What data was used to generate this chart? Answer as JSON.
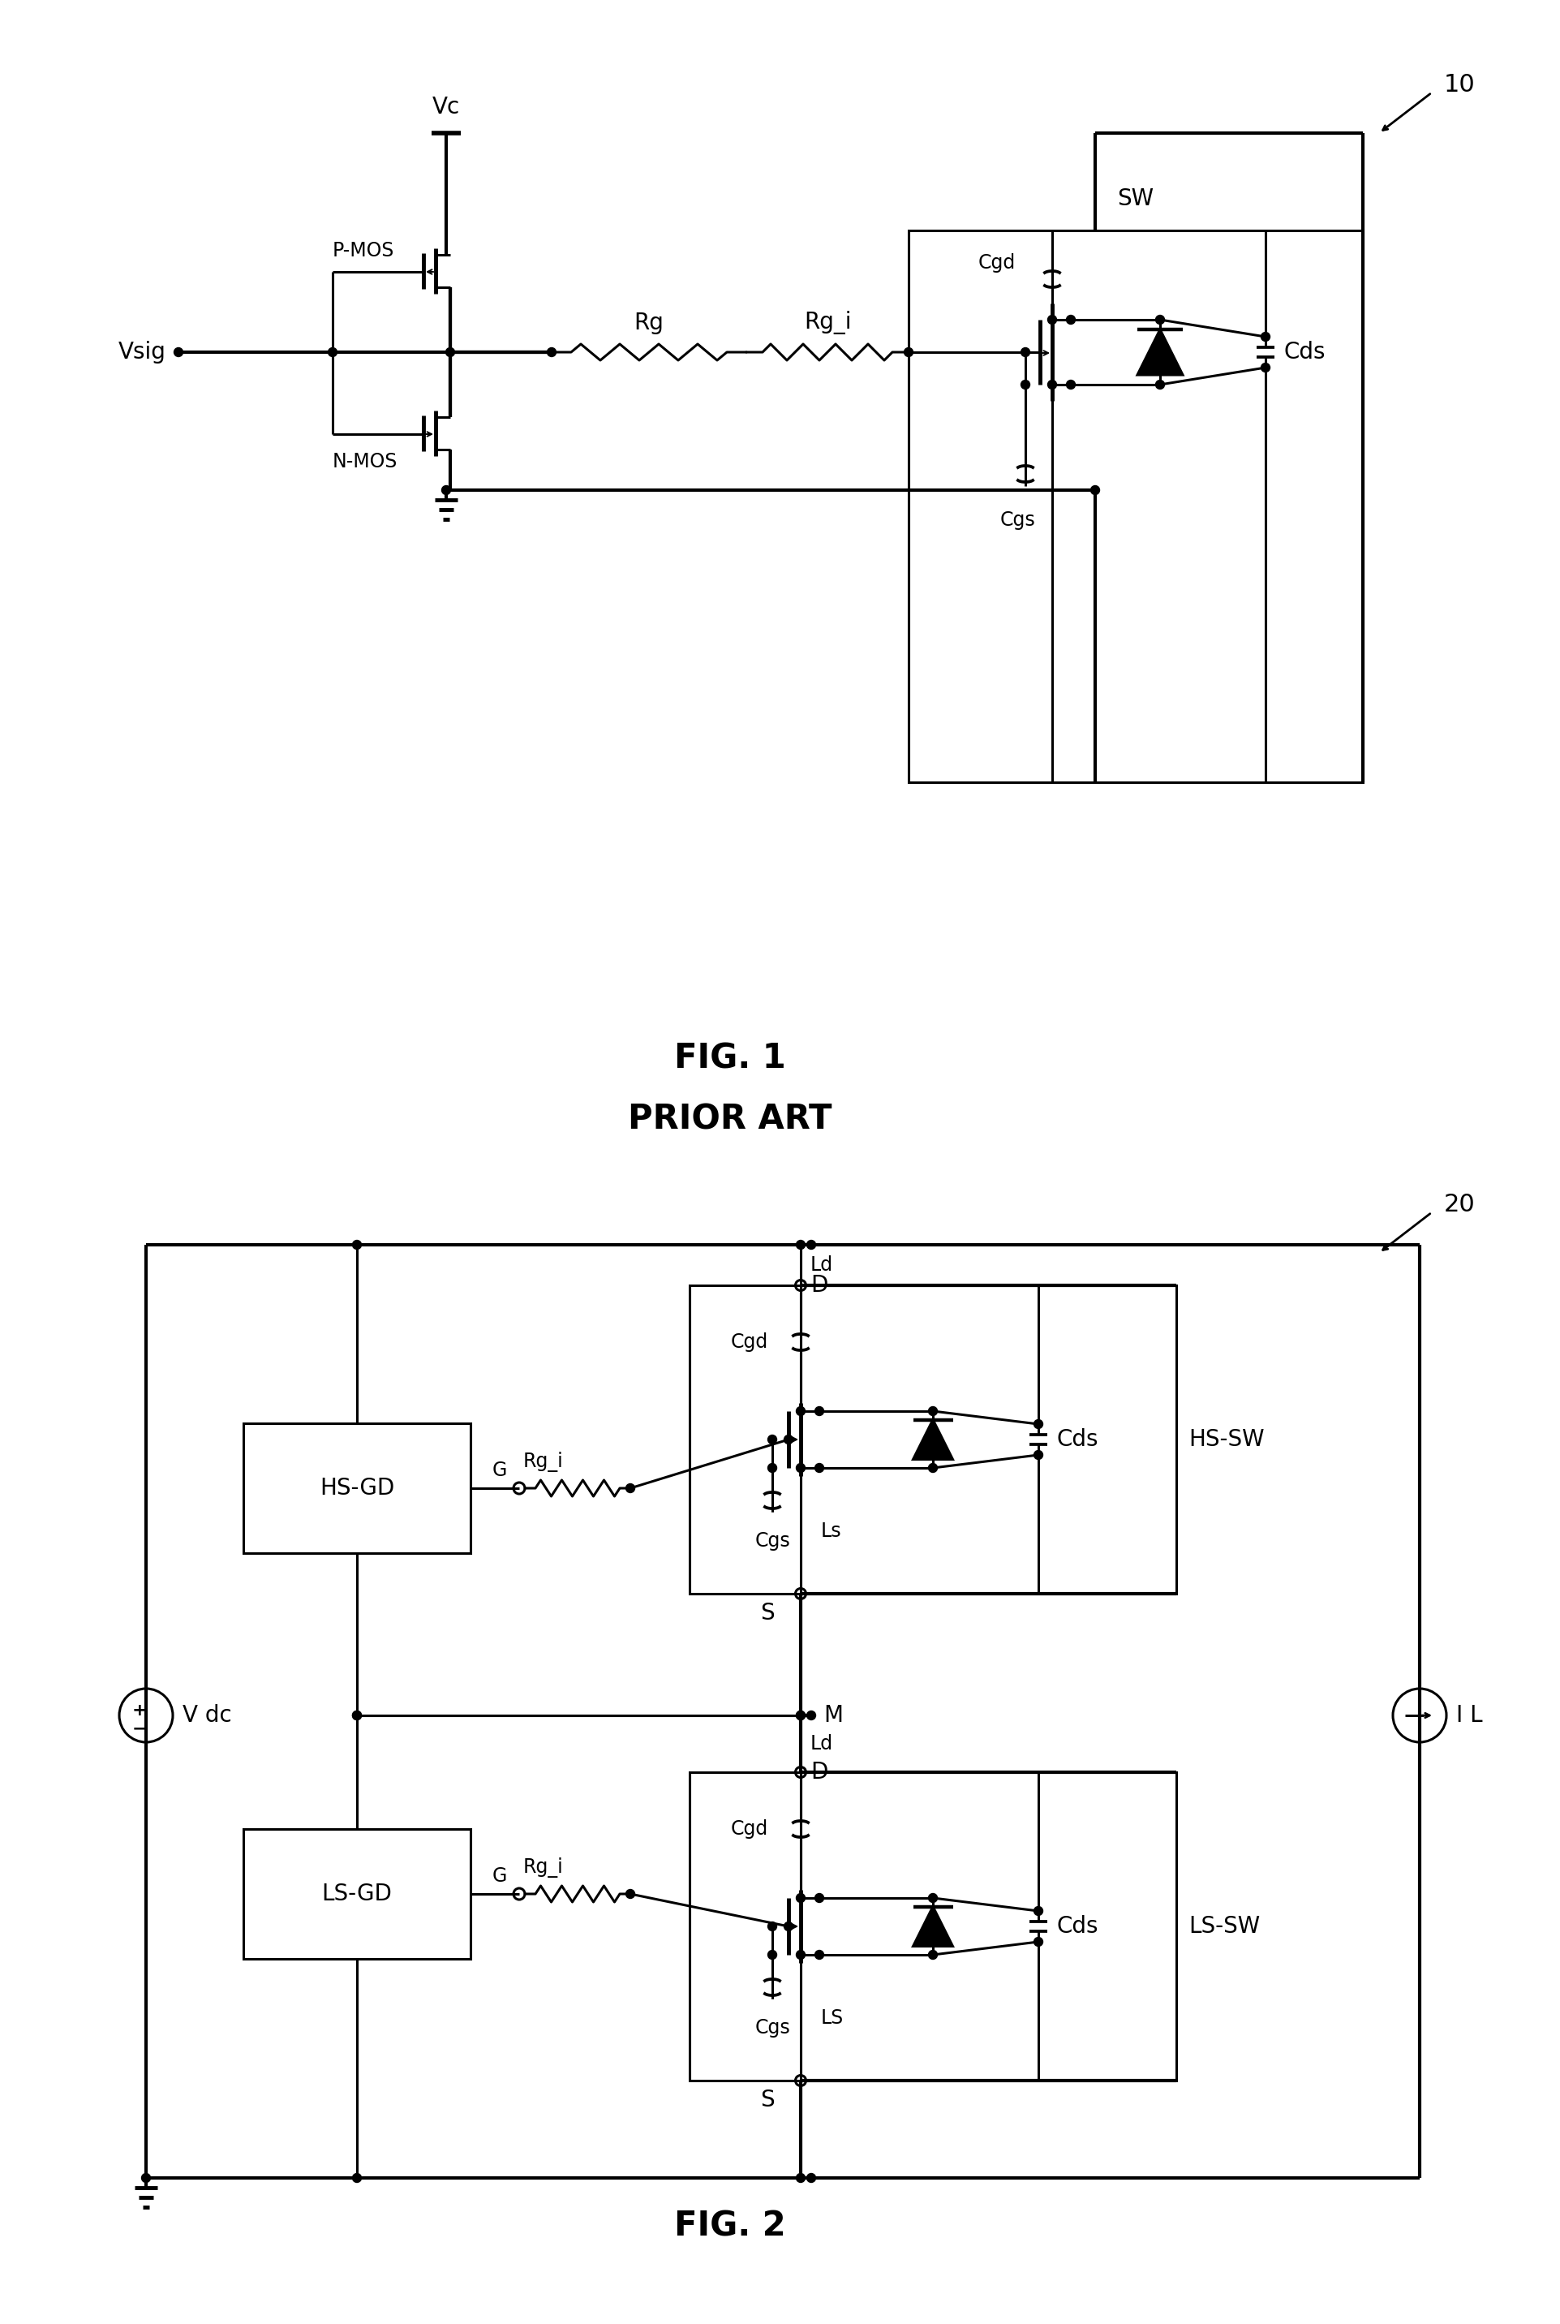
{
  "fig_width": 19.24,
  "fig_height": 28.64,
  "bg_color": "#ffffff",
  "line_color": "#000000",
  "lw": 2.2,
  "tlw": 3.0,
  "fs": 20,
  "fs_fig": 30,
  "fs_small": 17,
  "fig1_label": "FIG. 1",
  "fig1_sublabel": "PRIOR ART",
  "fig2_label": "FIG. 2",
  "label_10": "10",
  "label_20": "20"
}
